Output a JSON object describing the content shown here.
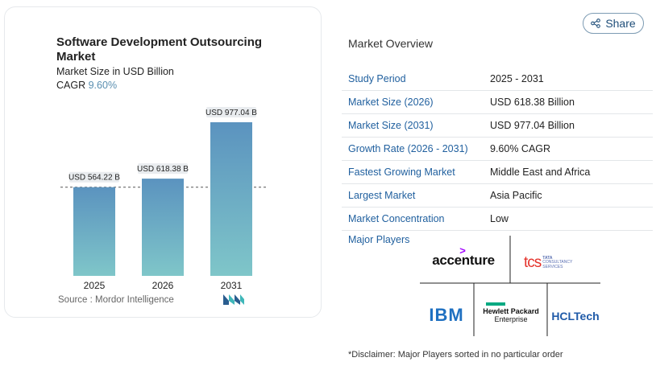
{
  "chart": {
    "title": "Software Development Outsourcing Market",
    "subtitle": "Market Size in USD Billion",
    "cagr_label": "CAGR",
    "cagr_value": "9.60%",
    "source": "Source :  Mordor Intelligence"
  },
  "chart_data": {
    "type": "bar",
    "categories": [
      "2025",
      "2026",
      "2031"
    ],
    "values": [
      564.22,
      618.38,
      977.04
    ],
    "data_labels": [
      "USD 564.22 B",
      "USD 618.38 B",
      "USD 977.04 B"
    ],
    "title": "Software Development Outsourcing Market",
    "ylabel": "Market Size in USD Billion",
    "ylim": [
      0,
      1000
    ],
    "reference_line": 564.22,
    "colors": [
      "#5b93bf",
      "#7fc6c9"
    ]
  },
  "share": {
    "label": "Share",
    "icon": "share-icon"
  },
  "overview": {
    "title": "Market Overview",
    "rows": [
      {
        "key": "Study Period",
        "value": "2025 - 2031"
      },
      {
        "key": "Market Size (2026)",
        "value": "USD 618.38 Billion"
      },
      {
        "key": "Market Size (2031)",
        "value": "USD 977.04 Billion"
      },
      {
        "key": "Growth Rate (2026 - 2031)",
        "value": "9.60% CAGR"
      },
      {
        "key": "Fastest Growing Market",
        "value": "Middle East and Africa"
      },
      {
        "key": "Largest Market",
        "value": "Asia Pacific"
      },
      {
        "key": "Market Concentration",
        "value": "Low"
      }
    ]
  },
  "players": {
    "label": "Major Players",
    "accenture": "accenture",
    "tcs_main": "tcs",
    "tcs_sub1": "TATA",
    "tcs_sub2": "CONSULTANCY",
    "tcs_sub3": "SERVICES",
    "ibm": "IBM",
    "hpe1": "Hewlett Packard",
    "hpe2": "Enterprise",
    "hcl": "HCLTech"
  },
  "disclaimer": "*Disclaimer: Major Players sorted in no particular order"
}
